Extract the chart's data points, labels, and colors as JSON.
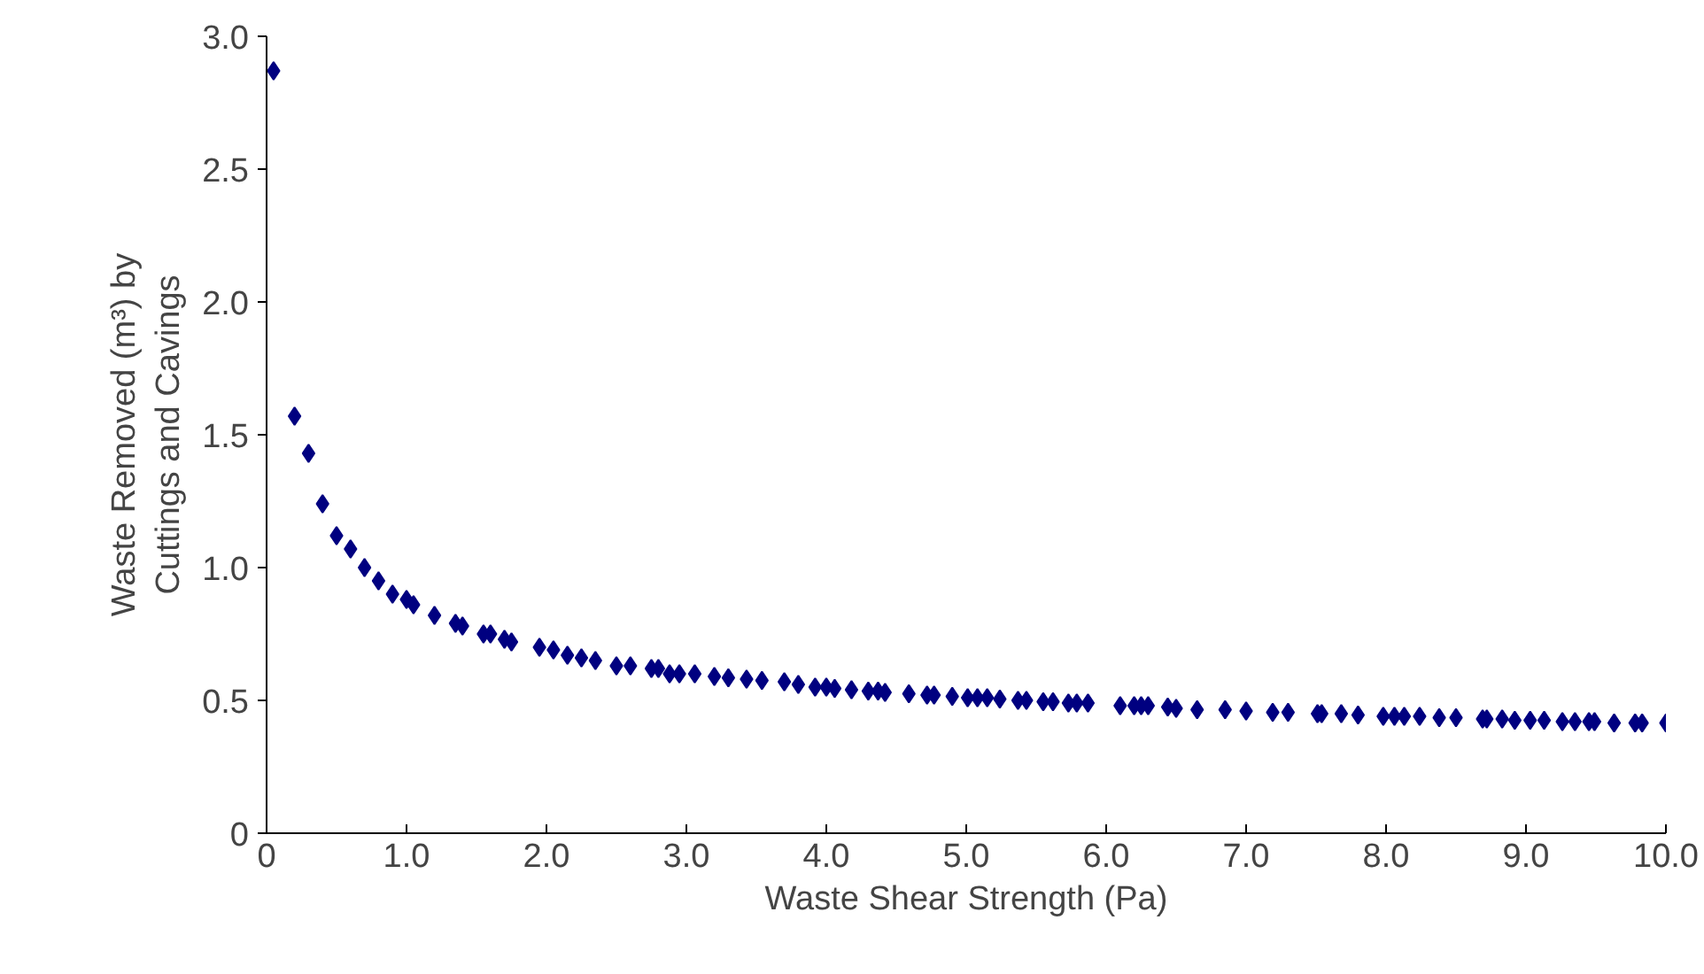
{
  "chart_data": {
    "type": "scatter",
    "xlabel": "Waste Shear Strength (Pa)",
    "ylabel": "Waste Removed (m³) by\nCuttings and Cavings",
    "marker": "diamond",
    "grid": false,
    "x": [
      0.05,
      0.2,
      0.3,
      0.4,
      0.5,
      0.6,
      0.7,
      0.8,
      0.9,
      1.0,
      1.05,
      1.2,
      1.35,
      1.4,
      1.55,
      1.6,
      1.7,
      1.75,
      1.95,
      2.05,
      2.15,
      2.25,
      2.35,
      2.5,
      2.6,
      2.75,
      2.8,
      2.88,
      2.95,
      3.06,
      3.2,
      3.3,
      3.43,
      3.54,
      3.7,
      3.8,
      3.92,
      4.0,
      4.06,
      4.18,
      4.3,
      4.37,
      4.42,
      4.59,
      4.72,
      4.77,
      4.9,
      5.01,
      5.08,
      5.15,
      5.24,
      5.37,
      5.43,
      5.55,
      5.62,
      5.73,
      5.79,
      5.87,
      6.1,
      6.2,
      6.25,
      6.3,
      6.44,
      6.5,
      6.65,
      6.85,
      7.0,
      7.19,
      7.3,
      7.51,
      7.54,
      7.68,
      7.8,
      7.98,
      8.06,
      8.13,
      8.24,
      8.38,
      8.5,
      8.69,
      8.72,
      8.83,
      8.92,
      9.03,
      9.13,
      9.26,
      9.35,
      9.45,
      9.49,
      9.63,
      9.78,
      9.83,
      10.0
    ],
    "values": [
      2.87,
      1.57,
      1.43,
      1.24,
      1.12,
      1.07,
      1.0,
      0.95,
      0.9,
      0.88,
      0.86,
      0.82,
      0.79,
      0.78,
      0.75,
      0.75,
      0.73,
      0.72,
      0.7,
      0.69,
      0.67,
      0.66,
      0.65,
      0.63,
      0.63,
      0.62,
      0.62,
      0.6,
      0.6,
      0.6,
      0.59,
      0.585,
      0.58,
      0.575,
      0.57,
      0.56,
      0.55,
      0.55,
      0.545,
      0.54,
      0.535,
      0.535,
      0.53,
      0.525,
      0.52,
      0.52,
      0.515,
      0.51,
      0.51,
      0.51,
      0.505,
      0.5,
      0.5,
      0.495,
      0.495,
      0.49,
      0.49,
      0.49,
      0.48,
      0.48,
      0.48,
      0.48,
      0.475,
      0.47,
      0.465,
      0.465,
      0.46,
      0.455,
      0.455,
      0.45,
      0.45,
      0.45,
      0.445,
      0.44,
      0.44,
      0.44,
      0.44,
      0.435,
      0.435,
      0.43,
      0.43,
      0.43,
      0.425,
      0.425,
      0.425,
      0.42,
      0.42,
      0.42,
      0.42,
      0.415,
      0.415,
      0.415,
      0.415
    ],
    "color": "#000080",
    "xlim": [
      0,
      10
    ],
    "xticks": [
      {
        "value": 0,
        "label": "0"
      },
      {
        "value": 1,
        "label": "1.0"
      },
      {
        "value": 2,
        "label": "2.0"
      },
      {
        "value": 3,
        "label": "3.0"
      },
      {
        "value": 4,
        "label": "4.0"
      },
      {
        "value": 5,
        "label": "5.0"
      },
      {
        "value": 6,
        "label": "6.0"
      },
      {
        "value": 7,
        "label": "7.0"
      },
      {
        "value": 8,
        "label": "8.0"
      },
      {
        "value": 9,
        "label": "9.0"
      },
      {
        "value": 10,
        "label": "10.0"
      }
    ],
    "ylim": [
      0,
      3
    ],
    "yticks": [
      {
        "value": 0,
        "label": "0"
      },
      {
        "value": 0.5,
        "label": "0.5"
      },
      {
        "value": 1,
        "label": "1.0"
      },
      {
        "value": 1.5,
        "label": "1.5"
      },
      {
        "value": 2,
        "label": "2.0"
      },
      {
        "value": 2.5,
        "label": "2.5"
      },
      {
        "value": 3,
        "label": "3.0"
      }
    ]
  }
}
